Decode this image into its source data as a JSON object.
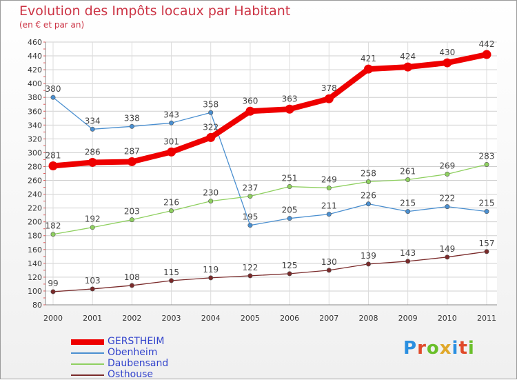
{
  "title": "Evolution des Impôts locaux par Habitant",
  "subtitle": "(en € et par an)",
  "logo": {
    "text": "Proxiti",
    "colors": [
      "#2a8fe0",
      "#e04a2a",
      "#6abf2a",
      "#e0a82a",
      "#2a8fe0",
      "#e04a2a",
      "#6abf2a"
    ]
  },
  "chart_data": {
    "type": "line",
    "x": [
      "2000",
      "2001",
      "2002",
      "2003",
      "2004",
      "2005",
      "2006",
      "2007",
      "2008",
      "2009",
      "2010",
      "2011"
    ],
    "ylim": [
      80,
      460
    ],
    "yticks": [
      80,
      100,
      120,
      140,
      160,
      180,
      200,
      220,
      240,
      260,
      280,
      300,
      320,
      340,
      360,
      380,
      400,
      420,
      440,
      460
    ],
    "grid": true,
    "legend_position": "bottom-left",
    "series": [
      {
        "name": "Obenheim",
        "color": "#4a8fd0",
        "values": [
          380,
          334,
          338,
          343,
          358,
          195,
          205,
          211,
          226,
          215,
          222,
          215
        ]
      },
      {
        "name": "Daubensand",
        "color": "#8fd060",
        "values": [
          182,
          192,
          203,
          216,
          230,
          237,
          251,
          249,
          258,
          261,
          269,
          283
        ]
      },
      {
        "name": "Osthouse",
        "color": "#7a2a2a",
        "values": [
          99,
          103,
          108,
          115,
          119,
          122,
          125,
          130,
          139,
          143,
          149,
          157
        ]
      },
      {
        "name": "GERSTHEIM",
        "color": "#ee0000",
        "values": [
          281,
          286,
          287,
          301,
          322,
          360,
          363,
          378,
          421,
          424,
          430,
          442
        ]
      }
    ],
    "legend": [
      "GERSTHEIM",
      "Obenheim",
      "Daubensand",
      "Osthouse"
    ]
  }
}
